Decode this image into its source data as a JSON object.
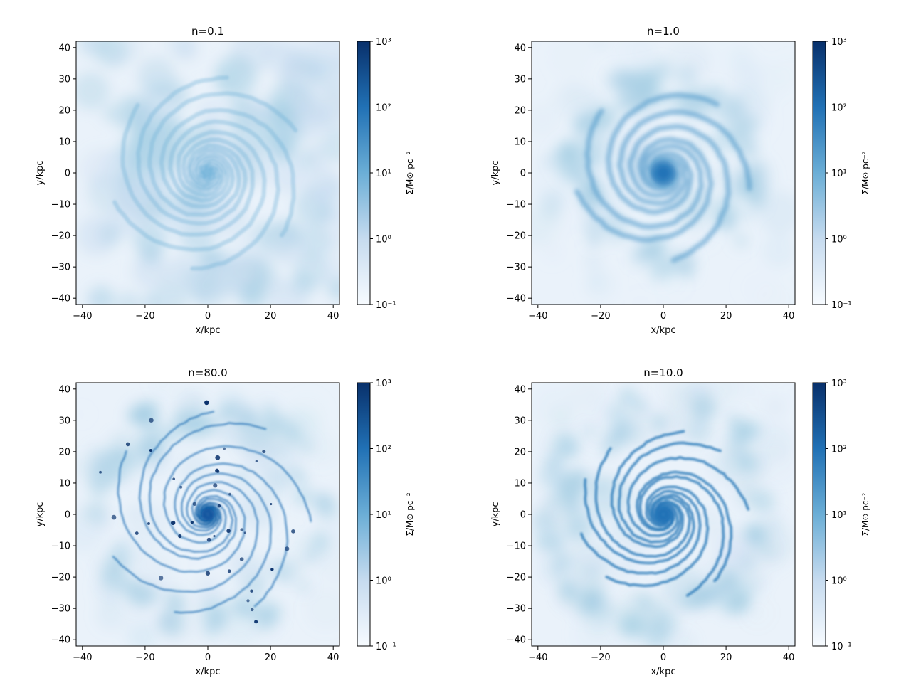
{
  "chart_data": [
    {
      "type": "heatmap",
      "title": "n=0.1",
      "xlabel": "x/kpc",
      "ylabel": "y/kpc",
      "xlim": [
        -42,
        42
      ],
      "ylim": [
        -42,
        42
      ],
      "xticks": [
        -40,
        -20,
        0,
        20,
        40
      ],
      "yticks": [
        -40,
        -30,
        -20,
        -10,
        0,
        10,
        20,
        30,
        40
      ],
      "colorbar": {
        "label": "Σ/M⊙ pc⁻²",
        "scale": "log",
        "range": [
          0.1,
          1000
        ],
        "ticks": [
          "10⁻¹",
          "10⁰",
          "10¹",
          "10²",
          "10³"
        ],
        "colormap": "Blues"
      },
      "morphology": "diffuse"
    },
    {
      "type": "heatmap",
      "title": "n=1.0",
      "xlabel": "x/kpc",
      "ylabel": "y/kpc",
      "xlim": [
        -42,
        42
      ],
      "ylim": [
        -42,
        42
      ],
      "xticks": [
        -40,
        -20,
        0,
        20,
        40
      ],
      "yticks": [
        -40,
        -30,
        -20,
        -10,
        0,
        10,
        20,
        30,
        40
      ],
      "colorbar": {
        "label": "Σ/M⊙ pc⁻²",
        "scale": "log",
        "range": [
          0.1,
          1000
        ],
        "ticks": [
          "10⁻¹",
          "10⁰",
          "10¹",
          "10²",
          "10³"
        ],
        "colormap": "Blues"
      },
      "morphology": "flocculent spiral"
    },
    {
      "type": "heatmap",
      "title": "n=80.0",
      "xlabel": "x/kpc",
      "ylabel": "y/kpc",
      "xlim": [
        -42,
        42
      ],
      "ylim": [
        -42,
        42
      ],
      "xticks": [
        -40,
        -20,
        0,
        20,
        40
      ],
      "yticks": [
        -40,
        -30,
        -20,
        -10,
        0,
        10,
        20,
        30,
        40
      ],
      "colorbar": {
        "label": "Σ/M⊙ pc⁻²",
        "scale": "log",
        "range": [
          0.1,
          1000
        ],
        "ticks": [
          "10⁻¹",
          "10⁰",
          "10¹",
          "10²",
          "10³"
        ],
        "colormap": "Blues"
      },
      "morphology": "clumpy spiral"
    },
    {
      "type": "heatmap",
      "title": "n=10.0",
      "xlabel": "x/kpc",
      "ylabel": "y/kpc",
      "xlim": [
        -42,
        42
      ],
      "ylim": [
        -42,
        42
      ],
      "xticks": [
        -40,
        -20,
        0,
        20,
        40
      ],
      "yticks": [
        -40,
        -30,
        -20,
        -10,
        0,
        10,
        20,
        30,
        40
      ],
      "colorbar": {
        "label": "Σ/M⊙ pc⁻²",
        "scale": "log",
        "range": [
          0.1,
          1000
        ],
        "ticks": [
          "10⁻¹",
          "10⁰",
          "10¹",
          "10²",
          "10³"
        ],
        "colormap": "Blues"
      },
      "morphology": "grand spiral"
    }
  ],
  "colors": {
    "map_low": "#f7fbff",
    "map_mid": "#9ecae1",
    "map_high": "#08306b"
  }
}
